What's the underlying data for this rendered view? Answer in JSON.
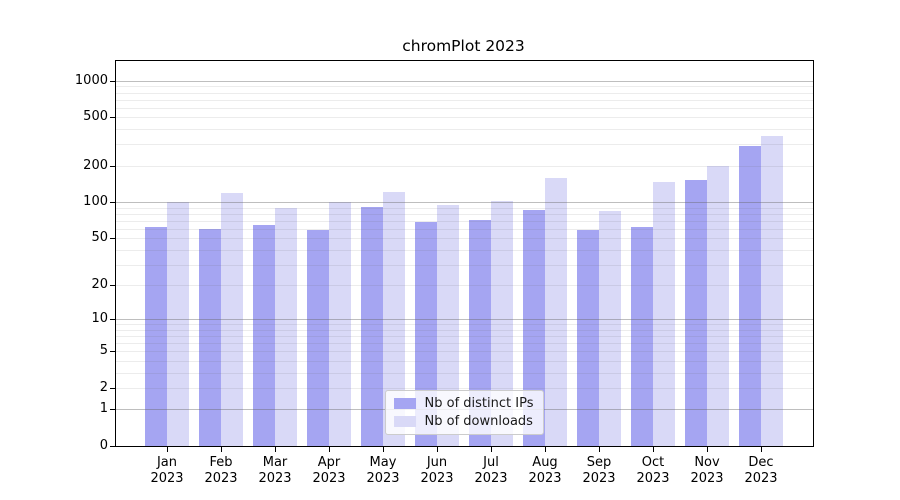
{
  "figure": {
    "title": "chromPlot 2023"
  },
  "chart_data": {
    "type": "bar",
    "title": "chromPlot 2023",
    "x_year": "2023",
    "categories": [
      "Jan",
      "Feb",
      "Mar",
      "Apr",
      "May",
      "Jun",
      "Jul",
      "Aug",
      "Sep",
      "Oct",
      "Nov",
      "Dec"
    ],
    "series": [
      {
        "name": "Nb of distinct IPs",
        "color": "#a5a5f2",
        "values": [
          62,
          60,
          64,
          58,
          91,
          68,
          71,
          86,
          59,
          62,
          151,
          292
        ]
      },
      {
        "name": "Nb of downloads",
        "color": "#d9d9f7",
        "values": [
          100,
          120,
          90,
          100,
          122,
          95,
          103,
          158,
          85,
          146,
          200,
          350
        ]
      }
    ],
    "y_scale": "log10(value+1)",
    "ylim": [
      0,
      1450
    ],
    "y_ticks": [
      1000,
      500,
      200,
      100,
      50,
      20,
      10,
      5,
      2,
      1,
      0
    ],
    "grid_major": [
      1,
      10,
      100,
      1000
    ],
    "grid_minor": [
      2,
      3,
      4,
      5,
      6,
      7,
      8,
      9,
      20,
      30,
      40,
      50,
      60,
      70,
      80,
      90,
      200,
      300,
      400,
      500,
      600,
      700,
      800,
      900
    ],
    "grid": "horizontal",
    "legend_position": "bottom-center"
  },
  "colors": {
    "bar_distinct_ips": "#a5a5f2",
    "bar_downloads": "#d9d9f7",
    "grid_major": "#b3b3b3",
    "grid_minor": "#ebebeb",
    "axis": "#000000",
    "legend_border": "#cccccc",
    "legend_background": "rgba(255,255,255,0.8)"
  }
}
